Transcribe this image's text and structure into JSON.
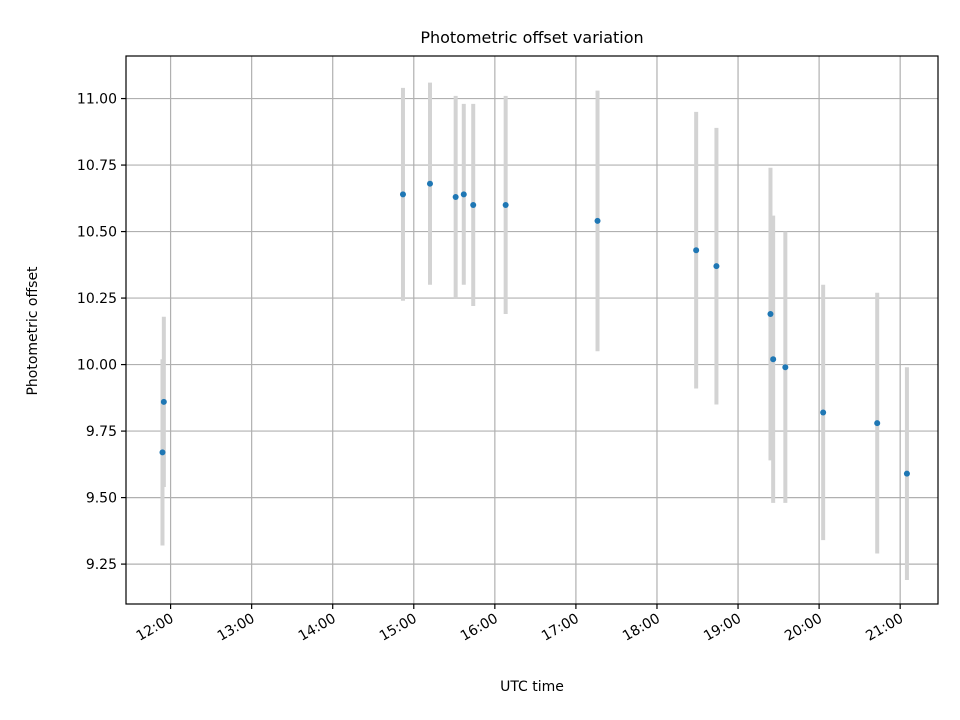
{
  "chart_data": {
    "type": "scatter",
    "title": "Photometric offset variation",
    "xlabel": "UTC time",
    "ylabel": "Photometric offset",
    "x_unit": "UTC time (HH:MM)",
    "xlim": [
      "11:27",
      "21:28"
    ],
    "ylim": [
      9.1,
      11.16
    ],
    "x_ticks": [
      "12:00",
      "13:00",
      "14:00",
      "15:00",
      "16:00",
      "17:00",
      "18:00",
      "19:00",
      "20:00",
      "21:00"
    ],
    "y_ticks": [
      "9.25",
      "9.50",
      "9.75",
      "10.00",
      "10.25",
      "10.50",
      "10.75",
      "11.00"
    ],
    "grid": true,
    "marker_color": "#1f77b4",
    "errorbar_color": "#d3d3d3",
    "points": [
      {
        "x": "11:54",
        "y": 9.67,
        "yerr": 0.35
      },
      {
        "x": "11:55",
        "y": 9.86,
        "yerr": 0.32
      },
      {
        "x": "14:52",
        "y": 10.64,
        "yerr": 0.4
      },
      {
        "x": "15:12",
        "y": 10.68,
        "yerr": 0.38
      },
      {
        "x": "15:31",
        "y": 10.63,
        "yerr": 0.38
      },
      {
        "x": "15:37",
        "y": 10.64,
        "yerr": 0.34
      },
      {
        "x": "15:44",
        "y": 10.6,
        "yerr": 0.38
      },
      {
        "x": "16:08",
        "y": 10.6,
        "yerr": 0.41
      },
      {
        "x": "17:16",
        "y": 10.54,
        "yerr": 0.49
      },
      {
        "x": "18:29",
        "y": 10.43,
        "yerr": 0.52
      },
      {
        "x": "18:44",
        "y": 10.37,
        "yerr": 0.52
      },
      {
        "x": "19:24",
        "y": 10.19,
        "yerr": 0.55
      },
      {
        "x": "19:26",
        "y": 10.02,
        "yerr": 0.54
      },
      {
        "x": "19:35",
        "y": 9.99,
        "yerr": 0.51
      },
      {
        "x": "20:03",
        "y": 9.82,
        "yerr": 0.48
      },
      {
        "x": "20:43",
        "y": 9.78,
        "yerr": 0.49
      },
      {
        "x": "21:05",
        "y": 9.59,
        "yerr": 0.4
      }
    ]
  }
}
